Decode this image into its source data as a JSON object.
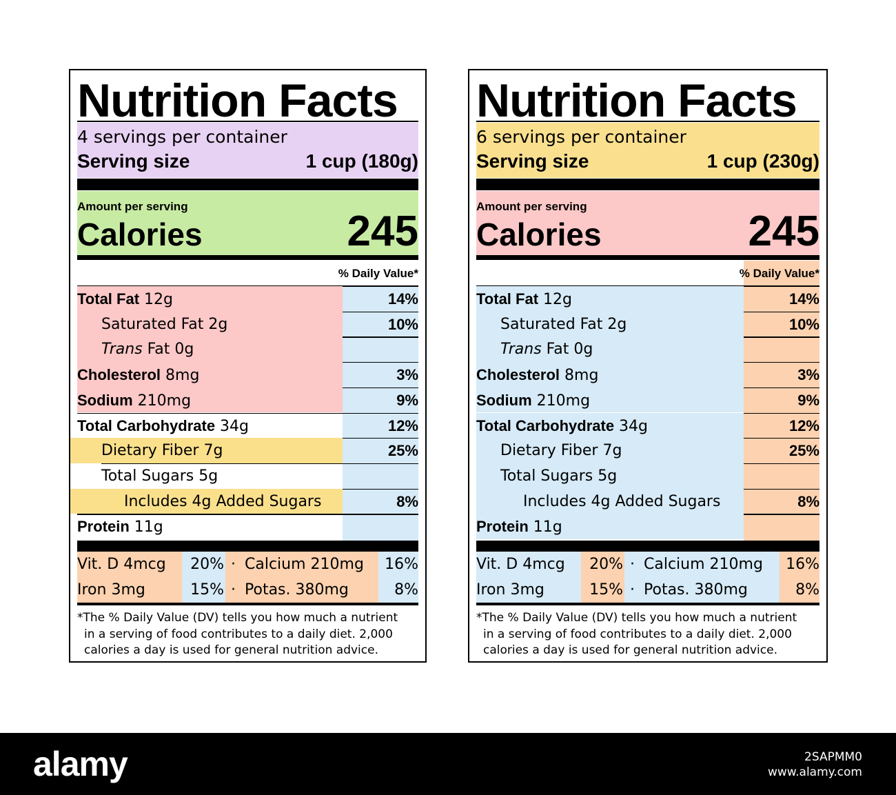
{
  "labels": [
    {
      "title": "Nutrition Facts",
      "servings_per_container": "4 servings per container",
      "serving_size_label": "Serving size",
      "serving_size_value": "1 cup (180g)",
      "amount_per_serving": "Amount per serving",
      "calories_label": "Calories",
      "calories_value": "245",
      "daily_value_header": "% Daily Value*",
      "nutrients": [
        {
          "bold": "Total Fat",
          "text": " 12g",
          "pct": "14%"
        },
        {
          "bold": "",
          "text": "Saturated Fat 2g",
          "pct": "10%"
        },
        {
          "bold": "",
          "italic": "Trans",
          "text": " Fat 0g",
          "pct": ""
        },
        {
          "bold": "Cholesterol",
          "text": " 8mg",
          "pct": "3%"
        },
        {
          "bold": "Sodium",
          "text": " 210mg",
          "pct": "9%"
        },
        {
          "bold": "Total Carbohydrate",
          "text": " 34g",
          "pct": "12%"
        },
        {
          "bold": "",
          "text": "Dietary Fiber 7g",
          "pct": "25%"
        },
        {
          "bold": "",
          "text": "Total Sugars 5g",
          "pct": ""
        },
        {
          "bold": "",
          "text": "Includes 4g Added Sugars",
          "pct": "8%"
        },
        {
          "bold": "Protein",
          "text": " 11g",
          "pct": ""
        }
      ],
      "vitamins": [
        {
          "name": "Vit. D 4mcg",
          "pct": "20%",
          "dot": "·",
          "name2": "Calcium 210mg",
          "pct2": "16%"
        },
        {
          "name": "Iron 3mg",
          "pct": "15%",
          "dot": "·",
          "name2": "Potas. 380mg",
          "pct2": "8%"
        }
      ],
      "footnote_lines": [
        "*The % Daily Value (DV) tells you how much a nutrient",
        "in a serving of food contributes to a daily diet. 2,000",
        "calories a day is used for general nutrition advice."
      ],
      "colors": {
        "serving_band": "#e8d2f3",
        "calories_band": "#c8eba4",
        "nutrient_band": "#fcc8c8",
        "dv_column": "#d6eaf7",
        "fiber_band": "#fbe08c",
        "vitamin_band": "#fcd2b0",
        "vitamin_pct": "#d6eaf7"
      }
    },
    {
      "title": "Nutrition Facts",
      "servings_per_container": "6 servings per container",
      "serving_size_label": "Serving size",
      "serving_size_value": "1 cup (230g)",
      "amount_per_serving": "Amount per serving",
      "calories_label": "Calories",
      "calories_value": "245",
      "daily_value_header": "% Daily Value*",
      "nutrients": [
        {
          "bold": "Total Fat",
          "text": " 12g",
          "pct": "14%"
        },
        {
          "bold": "",
          "text": "Saturated Fat 2g",
          "pct": "10%"
        },
        {
          "bold": "",
          "italic": "Trans",
          "text": " Fat 0g",
          "pct": ""
        },
        {
          "bold": "Cholesterol",
          "text": " 8mg",
          "pct": "3%"
        },
        {
          "bold": "Sodium",
          "text": " 210mg",
          "pct": "9%"
        },
        {
          "bold": "Total Carbohydrate",
          "text": " 34g",
          "pct": "12%"
        },
        {
          "bold": "",
          "text": "Dietary Fiber 7g",
          "pct": "25%"
        },
        {
          "bold": "",
          "text": "Total Sugars 5g",
          "pct": ""
        },
        {
          "bold": "",
          "text": "Includes 4g Added Sugars",
          "pct": "8%"
        },
        {
          "bold": "Protein",
          "text": " 11g",
          "pct": ""
        }
      ],
      "vitamins": [
        {
          "name": "Vit. D 4mcg",
          "pct": "20%",
          "dot": "·",
          "name2": "Calcium 210mg",
          "pct2": "16%"
        },
        {
          "name": "Iron 3mg",
          "pct": "15%",
          "dot": "·",
          "name2": "Potas. 380mg",
          "pct2": "8%"
        }
      ],
      "footnote_lines": [
        "*The % Daily Value (DV) tells you how much a nutrient",
        "in a serving of food contributes to a daily diet. 2,000",
        "calories a day is used for general nutrition advice."
      ],
      "colors": {
        "serving_band": "#fae08e",
        "calories_band": "#fcc8c8",
        "nutrient_band": "#d6eaf7",
        "dv_column": "#fcd2b0",
        "vitamin_band": "#d6eaf7",
        "vitamin_pct": "#fcd2b0"
      }
    }
  ],
  "footer": {
    "brand": "alamy",
    "image_id": "2SAPMM0",
    "site": "www.alamy.com",
    "background": "#000000"
  }
}
